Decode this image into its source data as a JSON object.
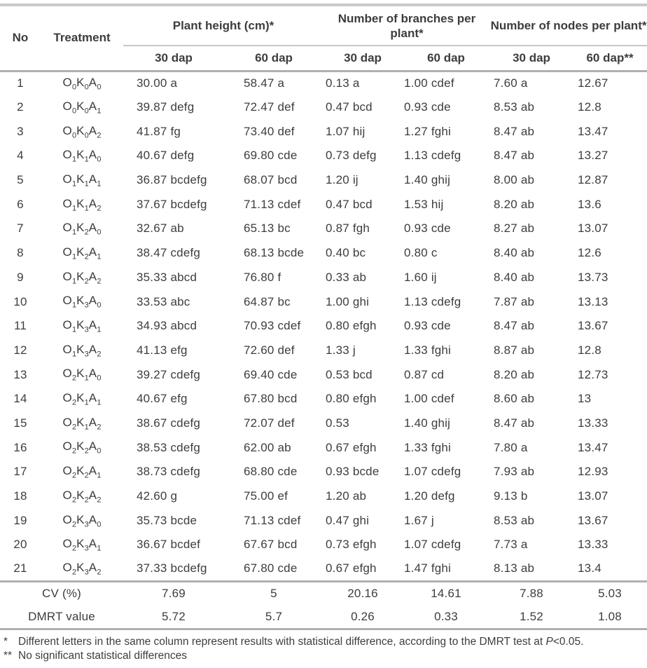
{
  "table": {
    "columns": {
      "no": "No",
      "treatment": "Treatment",
      "groups": [
        {
          "label": "Plant height (cm)*",
          "sub": [
            "30 dap",
            "60 dap"
          ]
        },
        {
          "label": "Number of branches per plant*",
          "sub": [
            "30 dap",
            "60 dap"
          ]
        },
        {
          "label": "Number of nodes per plant*",
          "sub": [
            "30 dap",
            "60 dap**"
          ]
        }
      ]
    },
    "rows": [
      {
        "no": "1",
        "treatment": "O0K0A0",
        "values": [
          "30.00 a",
          "58.47 a",
          "0.13 a",
          "1.00 cdef",
          "7.60 a",
          "12.67"
        ]
      },
      {
        "no": "2",
        "treatment": "O0K0A1",
        "values": [
          "39.87 defg",
          "72.47 def",
          "0.47 bcd",
          "0.93 cde",
          "8.53 ab",
          "12.8"
        ]
      },
      {
        "no": "3",
        "treatment": "O0K0A2",
        "values": [
          "41.87 fg",
          "73.40 def",
          "1.07 hij",
          "1.27 fghi",
          "8.47 ab",
          "13.47"
        ]
      },
      {
        "no": "4",
        "treatment": "O1K1A0",
        "values": [
          "40.67 defg",
          "69.80 cde",
          "0.73 defg",
          "1.13 cdefg",
          "8.47 ab",
          "13.27"
        ]
      },
      {
        "no": "5",
        "treatment": "O1K1A1",
        "values": [
          "36.87 bcdefg",
          "68.07 bcd",
          "1.20 ij",
          "1.40 ghij",
          "8.00 ab",
          "12.87"
        ]
      },
      {
        "no": "6",
        "treatment": "O1K1A2",
        "values": [
          "37.67 bcdefg",
          "71.13 cdef",
          "0.47 bcd",
          "1.53 hij",
          "8.20 ab",
          "13.6"
        ]
      },
      {
        "no": "7",
        "treatment": "O1K2A0",
        "values": [
          "32.67 ab",
          "65.13 bc",
          "0.87 fgh",
          "0.93 cde",
          "8.27 ab",
          "13.07"
        ]
      },
      {
        "no": "8",
        "treatment": "O1K2A1",
        "values": [
          "38.47 cdefg",
          "68.13 bcde",
          "0.40 bc",
          "0.80 c",
          "8.40 ab",
          "12.6"
        ]
      },
      {
        "no": "9",
        "treatment": "O1K2A2",
        "values": [
          "35.33 abcd",
          "76.80 f",
          "0.33 ab",
          "1.60 ij",
          "8.40 ab",
          "13.73"
        ]
      },
      {
        "no": "10",
        "treatment": "O1K3A0",
        "values": [
          "33.53 abc",
          "64.87 bc",
          "1.00 ghi",
          "1.13 cdefg",
          "7.87 ab",
          "13.13"
        ]
      },
      {
        "no": "11",
        "treatment": "O1K3A1",
        "values": [
          "34.93 abcd",
          "70.93 cdef",
          "0.80 efgh",
          "0.93 cde",
          "8.47 ab",
          "13.67"
        ]
      },
      {
        "no": "12",
        "treatment": "O1K3A2",
        "values": [
          "41.13 efg",
          "72.60 def",
          "1.33 j",
          "1.33 fghi",
          "8.87 ab",
          "12.8"
        ]
      },
      {
        "no": "13",
        "treatment": "O2K1A0",
        "values": [
          "39.27 cdefg",
          "69.40 cde",
          "0.53 bcd",
          "0.87 cd",
          "8.20 ab",
          "12.73"
        ]
      },
      {
        "no": "14",
        "treatment": "O2K1A1",
        "values": [
          "40.67 efg",
          "67.80 bcd",
          "0.80 efgh",
          "1.00 cdef",
          "8.60 ab",
          "13"
        ]
      },
      {
        "no": "15",
        "treatment": "O2K1A2",
        "values": [
          "38.67 cdefg",
          "72.07 def",
          "0.53",
          "1.40 ghij",
          "8.47 ab",
          "13.33"
        ]
      },
      {
        "no": "16",
        "treatment": "O2K2A0",
        "values": [
          "38.53 cdefg",
          "62.00 ab",
          "0.67 efgh",
          "1.33 fghi",
          "7.80 a",
          "13.47"
        ]
      },
      {
        "no": "17",
        "treatment": "O2K2A1",
        "values": [
          "38.73 cdefg",
          "68.80 cde",
          "0.93 bcde",
          "1.07 cdefg",
          "7.93 ab",
          "12.93"
        ]
      },
      {
        "no": "18",
        "treatment": "O2K2A2",
        "values": [
          "42.60 g",
          "75.00 ef",
          "1.20 ab",
          "1.20 defg",
          "9.13 b",
          "13.07"
        ]
      },
      {
        "no": "19",
        "treatment": "O2K3A0",
        "values": [
          "35.73 bcde",
          "71.13 cdef",
          "0.47 ghi",
          "1.67 j",
          "8.53 ab",
          "13.67"
        ]
      },
      {
        "no": "20",
        "treatment": "O2K3A1",
        "values": [
          "36.67 bcdef",
          "67.67 bcd",
          "0.73 efgh",
          "1.07 cdefg",
          "7.73 a",
          "13.33"
        ]
      },
      {
        "no": "21",
        "treatment": "O2K3A2",
        "values": [
          "37.33 bcdefg",
          "67.80 cde",
          "0.67 efgh",
          "1.47 fghi",
          "8.13 ab",
          "13.4"
        ]
      }
    ],
    "summary_rows": [
      {
        "label": "CV (%)",
        "values": [
          "7.69",
          "5",
          "20.16",
          "14.61",
          "7.88",
          "5.03"
        ]
      },
      {
        "label": "DMRT value",
        "values": [
          "5.72",
          "5.7",
          "0.26",
          "0.33",
          "1.52",
          "1.08"
        ]
      }
    ],
    "footnotes": [
      {
        "marker": "*",
        "pre": "Different letters in the same column represent results with statistical difference, according to the DMRT test at ",
        "italic": "P",
        "post": "<0.05."
      },
      {
        "marker": "**",
        "text": "No significant statistical differences"
      }
    ],
    "colors": {
      "rule_thick": "#b0b0b0",
      "rule_thin": "#c6c6c6",
      "text": "#3d3d3d"
    }
  }
}
